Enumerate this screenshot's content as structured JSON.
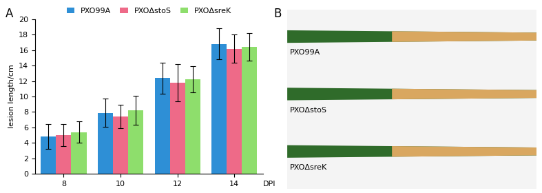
{
  "chart_data": {
    "type": "bar",
    "y_label": "lesion length/cm",
    "x_label": "DPI",
    "categories": [
      "8",
      "10",
      "12",
      "14"
    ],
    "series": [
      {
        "name": "PXO99A",
        "color": "#2e8fd6",
        "values": [
          4.8,
          7.9,
          12.4,
          16.8
        ],
        "errors": [
          1.6,
          1.8,
          2.0,
          2.0
        ]
      },
      {
        "name": "PXOΔstoS",
        "color": "#ee6a88",
        "values": [
          5.0,
          7.4,
          11.8,
          16.2
        ],
        "errors": [
          1.4,
          1.5,
          2.4,
          1.8
        ]
      },
      {
        "name": "PXOΔsreK",
        "color": "#8ede6c",
        "values": [
          5.4,
          8.2,
          12.2,
          16.4
        ],
        "errors": [
          1.4,
          1.9,
          1.7,
          1.8
        ]
      }
    ],
    "ylim": [
      0,
      20
    ],
    "yticks": [
      0,
      2,
      4,
      6,
      8,
      10,
      12,
      14,
      16,
      18,
      20
    ],
    "legend": "upper center",
    "grid": false
  },
  "panel_labels": [
    "A",
    "B"
  ],
  "photo": {
    "labels": [
      "PXO99A",
      "PXOΔstoS",
      "PXOΔsreK"
    ]
  }
}
